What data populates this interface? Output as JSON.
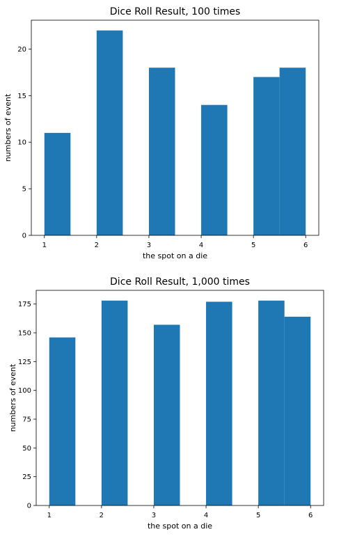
{
  "chart_data": [
    {
      "type": "bar",
      "title": "Dice Roll Result, 100 times",
      "xlabel": "the spot on a die",
      "ylabel": "numbers of event",
      "xlim": [
        0.75,
        6.25
      ],
      "ylim": [
        0,
        23.1
      ],
      "xticks": [
        1,
        2,
        3,
        4,
        5,
        6
      ],
      "yticks": [
        0,
        5,
        10,
        15,
        20
      ],
      "bins": [
        {
          "x0": 1.0,
          "x1": 1.5,
          "value": 11
        },
        {
          "x0": 2.0,
          "x1": 2.5,
          "value": 22
        },
        {
          "x0": 3.0,
          "x1": 3.5,
          "value": 18
        },
        {
          "x0": 4.0,
          "x1": 4.5,
          "value": 14
        },
        {
          "x0": 5.0,
          "x1": 5.5,
          "value": 17
        },
        {
          "x0": 5.5,
          "x1": 6.0,
          "value": 18
        }
      ],
      "color": "#1f77b4",
      "grid": false
    },
    {
      "type": "bar",
      "title": "Dice Roll Result, 1,000 times",
      "xlabel": "the spot on a die",
      "ylabel": "numbers of event",
      "xlim": [
        0.75,
        6.25
      ],
      "ylim": [
        0,
        186.9
      ],
      "xticks": [
        1,
        2,
        3,
        4,
        5,
        6
      ],
      "yticks": [
        0,
        25,
        50,
        75,
        100,
        125,
        150,
        175
      ],
      "bins": [
        {
          "x0": 1.0,
          "x1": 1.5,
          "value": 146
        },
        {
          "x0": 2.0,
          "x1": 2.5,
          "value": 178
        },
        {
          "x0": 3.0,
          "x1": 3.5,
          "value": 157
        },
        {
          "x0": 4.0,
          "x1": 4.5,
          "value": 177
        },
        {
          "x0": 5.0,
          "x1": 5.5,
          "value": 178
        },
        {
          "x0": 5.5,
          "x1": 6.0,
          "value": 164
        }
      ],
      "color": "#1f77b4",
      "grid": false
    }
  ]
}
